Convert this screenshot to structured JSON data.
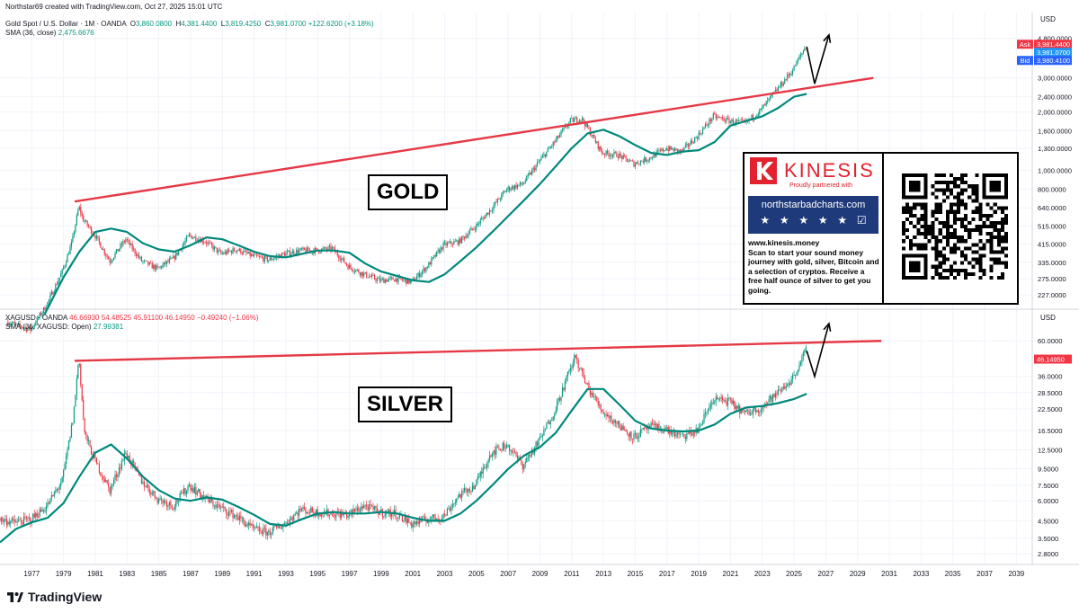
{
  "header": {
    "attribution": "Northstar69 created with TradingView.com, Oct 27, 2025 15:01 UTC",
    "gold_symbol": "Gold Spot / U.S. Dollar · 1M · OANDA",
    "gold_ohlc": {
      "o": "3,860.0800",
      "h": "4,381.4400",
      "l": "3,819.4250",
      "c": "3,981.0700",
      "chg": "+122.6200 (+3.18%)"
    },
    "gold_sma_label": "SMA (36, close)",
    "gold_sma_value": "2,475.6676",
    "silver_symbol": "XAGUSD · OANDA",
    "silver_ohlc": {
      "o": "46.66930",
      "h": "54.48525",
      "l": "45.91100",
      "c": "46.14950",
      "chg": "−0.49240 (−1.06%)"
    },
    "silver_sma_label": "SMA (36, XAGUSD: Open)",
    "silver_sma_value": "27.99381"
  },
  "labels": {
    "gold": "GOLD",
    "silver": "SILVER"
  },
  "price_tags": {
    "ask_label": "Ask",
    "ask": "3,981.4400",
    "last": "3,981.0700",
    "bid_label": "Bid",
    "bid": "3,980.4100",
    "silver_last": "46.14950"
  },
  "ad": {
    "brand": "KINESIS",
    "partner": "Proudly partnered with",
    "site": "northstarbadcharts.com",
    "text_lines": [
      "www.kinesis.money",
      "Scan to start your sound money",
      "journey with gold, silver, Bitcoin and",
      "a selection of cryptos. Receive a",
      "free half ounce of silver to get you",
      "going."
    ]
  },
  "footer": {
    "brand": "TradingView"
  },
  "colors": {
    "up": "#089981",
    "down": "#f23645",
    "sma": "#00897b",
    "trend": "#e53945",
    "ask": "#f23645",
    "last": "#2196f3",
    "bid": "#2962ff"
  },
  "chart_data": [
    {
      "type": "candlestick",
      "title": "Gold Spot / U.S. Dollar · 1M · OANDA",
      "axis_unit": "USD",
      "y_scale": "log",
      "y_ticks": [
        "4,800.0000",
        "3,000.0000",
        "2,400.0000",
        "2,000.0000",
        "1,600.0000",
        "1,300.0000",
        "1,000.0000",
        "800.0000",
        "640.0000",
        "515.0000",
        "415.0000",
        "335.0000",
        "275.0000",
        "227.0000"
      ],
      "y_tick_values": [
        4800,
        3000,
        2400,
        2000,
        1600,
        1300,
        1000,
        800,
        640,
        515,
        415,
        335,
        275,
        227
      ],
      "x_ticks": [
        "1977",
        "1979",
        "1981",
        "1983",
        "1985",
        "1987",
        "1989",
        "1991",
        "1993",
        "1995",
        "1997",
        "1999",
        "2001",
        "2003",
        "2005",
        "2007",
        "2009",
        "2011",
        "2013",
        "2015",
        "2017",
        "2019",
        "2021",
        "2023",
        "2025",
        "2027",
        "2029",
        "2031",
        "2033",
        "2035",
        "2037",
        "2039"
      ],
      "price_path": [
        [
          1975.5,
          165
        ],
        [
          1977,
          150
        ],
        [
          1978,
          200
        ],
        [
          1979,
          300
        ],
        [
          1979.6,
          420
        ],
        [
          1980.05,
          650
        ],
        [
          1980.3,
          560
        ],
        [
          1981,
          470
        ],
        [
          1982,
          340
        ],
        [
          1983,
          440
        ],
        [
          1984,
          340
        ],
        [
          1985,
          310
        ],
        [
          1986,
          350
        ],
        [
          1987,
          460
        ],
        [
          1988,
          430
        ],
        [
          1989,
          370
        ],
        [
          1990,
          390
        ],
        [
          1991,
          360
        ],
        [
          1992,
          345
        ],
        [
          1993,
          370
        ],
        [
          1994,
          385
        ],
        [
          1995,
          385
        ],
        [
          1996,
          395
        ],
        [
          1997,
          320
        ],
        [
          1998,
          290
        ],
        [
          1999,
          270
        ],
        [
          2000,
          275
        ],
        [
          2001,
          265
        ],
        [
          2002,
          320
        ],
        [
          2003,
          410
        ],
        [
          2004,
          430
        ],
        [
          2005,
          510
        ],
        [
          2006,
          630
        ],
        [
          2007,
          800
        ],
        [
          2008,
          850
        ],
        [
          2009,
          1100
        ],
        [
          2010,
          1400
        ],
        [
          2011,
          1800
        ],
        [
          2011.7,
          1850
        ],
        [
          2012,
          1700
        ],
        [
          2013,
          1230
        ],
        [
          2014,
          1200
        ],
        [
          2015,
          1080
        ],
        [
          2016,
          1160
        ],
        [
          2017,
          1300
        ],
        [
          2018,
          1250
        ],
        [
          2019,
          1500
        ],
        [
          2020,
          1900
        ],
        [
          2021,
          1800
        ],
        [
          2022,
          1750
        ],
        [
          2023,
          2050
        ],
        [
          2024,
          2600
        ],
        [
          2025,
          3300
        ],
        [
          2025.8,
          4350
        ]
      ],
      "sma_path": [
        [
          1977.8,
          180
        ],
        [
          1979,
          280
        ],
        [
          1980,
          380
        ],
        [
          1981,
          480
        ],
        [
          1982,
          500
        ],
        [
          1983,
          480
        ],
        [
          1984,
          420
        ],
        [
          1985,
          390
        ],
        [
          1986,
          380
        ],
        [
          1987,
          410
        ],
        [
          1988,
          450
        ],
        [
          1989,
          440
        ],
        [
          1990,
          410
        ],
        [
          1991,
          380
        ],
        [
          1992,
          360
        ],
        [
          1993,
          355
        ],
        [
          1994,
          370
        ],
        [
          1995,
          385
        ],
        [
          1996,
          385
        ],
        [
          1997,
          375
        ],
        [
          1998,
          330
        ],
        [
          1999,
          300
        ],
        [
          2000,
          285
        ],
        [
          2001,
          270
        ],
        [
          2002,
          265
        ],
        [
          2003,
          290
        ],
        [
          2004,
          340
        ],
        [
          2005,
          400
        ],
        [
          2006,
          480
        ],
        [
          2007,
          580
        ],
        [
          2008,
          700
        ],
        [
          2009,
          850
        ],
        [
          2010,
          1050
        ],
        [
          2011,
          1300
        ],
        [
          2012,
          1550
        ],
        [
          2013,
          1620
        ],
        [
          2014,
          1500
        ],
        [
          2015,
          1350
        ],
        [
          2016,
          1230
        ],
        [
          2017,
          1200
        ],
        [
          2018,
          1250
        ],
        [
          2019,
          1270
        ],
        [
          2020,
          1400
        ],
        [
          2021,
          1700
        ],
        [
          2022,
          1800
        ],
        [
          2023,
          1900
        ],
        [
          2024,
          2100
        ],
        [
          2025,
          2400
        ],
        [
          2025.8,
          2480
        ]
      ],
      "trendline": [
        [
          1979.7,
          690
        ],
        [
          2030,
          3000
        ]
      ],
      "projection": [
        [
          2025.8,
          4350
        ],
        [
          2026.3,
          2800
        ],
        [
          2027.2,
          5000
        ]
      ],
      "last": {
        "ask": 3981.44,
        "close": 3981.07,
        "bid": 3980.41
      }
    },
    {
      "type": "candlestick",
      "title": "XAGUSD · OANDA",
      "axis_unit": "USD",
      "y_scale": "log",
      "y_ticks": [
        "60.0000",
        "36.0000",
        "28.5000",
        "22.5000",
        "16.5000",
        "12.5000",
        "9.5000",
        "7.5000",
        "6.0000",
        "4.5000",
        "3.5000",
        "2.8000"
      ],
      "y_tick_values": [
        60,
        36,
        28.5,
        22.5,
        16.5,
        12.5,
        9.5,
        7.5,
        6,
        4.5,
        3.5,
        2.8
      ],
      "price_path": [
        [
          1975,
          4.6
        ],
        [
          1976,
          4.4
        ],
        [
          1977,
          4.6
        ],
        [
          1978,
          5.5
        ],
        [
          1979,
          8
        ],
        [
          1979.7,
          20
        ],
        [
          1980.05,
          48
        ],
        [
          1980.4,
          16
        ],
        [
          1981,
          11
        ],
        [
          1982,
          7
        ],
        [
          1983,
          12
        ],
        [
          1984,
          8
        ],
        [
          1985,
          6.2
        ],
        [
          1986,
          5.6
        ],
        [
          1987,
          7.5
        ],
        [
          1988,
          6.2
        ],
        [
          1989,
          5.4
        ],
        [
          1990,
          4.8
        ],
        [
          1991,
          4
        ],
        [
          1992,
          3.8
        ],
        [
          1993,
          4.3
        ],
        [
          1994,
          5.3
        ],
        [
          1995,
          5.1
        ],
        [
          1996,
          5
        ],
        [
          1997,
          4.9
        ],
        [
          1998,
          5.6
        ],
        [
          1999,
          5.1
        ],
        [
          2000,
          5
        ],
        [
          2001,
          4.3
        ],
        [
          2002,
          4.6
        ],
        [
          2003,
          4.8
        ],
        [
          2004,
          6.5
        ],
        [
          2005,
          7.5
        ],
        [
          2006,
          12
        ],
        [
          2007,
          13.5
        ],
        [
          2008,
          10
        ],
        [
          2009,
          14
        ],
        [
          2010,
          22
        ],
        [
          2011.3,
          48
        ],
        [
          2012,
          32
        ],
        [
          2013,
          22
        ],
        [
          2014,
          18
        ],
        [
          2015,
          15
        ],
        [
          2016,
          17.5
        ],
        [
          2017,
          16.8
        ],
        [
          2018,
          15
        ],
        [
          2019,
          16.5
        ],
        [
          2020,
          26
        ],
        [
          2021,
          25
        ],
        [
          2022,
          21
        ],
        [
          2023,
          23
        ],
        [
          2024,
          28
        ],
        [
          2025,
          35
        ],
        [
          2025.8,
          52
        ]
      ],
      "sma_path": [
        [
          1975,
          3.3
        ],
        [
          1976,
          4
        ],
        [
          1977,
          4.4
        ],
        [
          1978,
          4.7
        ],
        [
          1979,
          5.8
        ],
        [
          1980,
          8.5
        ],
        [
          1981,
          12
        ],
        [
          1982,
          13.5
        ],
        [
          1983,
          11
        ],
        [
          1984,
          8.5
        ],
        [
          1985,
          7
        ],
        [
          1986,
          6.2
        ],
        [
          1987,
          6
        ],
        [
          1988,
          6.3
        ],
        [
          1989,
          6.1
        ],
        [
          1990,
          5.5
        ],
        [
          1991,
          4.9
        ],
        [
          1992,
          4.3
        ],
        [
          1993,
          4.2
        ],
        [
          1994,
          4.6
        ],
        [
          1995,
          5
        ],
        [
          1996,
          5.1
        ],
        [
          1997,
          5
        ],
        [
          1998,
          5
        ],
        [
          1999,
          5.1
        ],
        [
          2000,
          5
        ],
        [
          2001,
          4.7
        ],
        [
          2002,
          4.5
        ],
        [
          2003,
          4.5
        ],
        [
          2004,
          5
        ],
        [
          2005,
          6
        ],
        [
          2006,
          7.5
        ],
        [
          2007,
          9.5
        ],
        [
          2008,
          11.5
        ],
        [
          2009,
          13
        ],
        [
          2010,
          16
        ],
        [
          2011,
          22
        ],
        [
          2012,
          30
        ],
        [
          2013,
          30
        ],
        [
          2014,
          24
        ],
        [
          2015,
          19
        ],
        [
          2016,
          17
        ],
        [
          2017,
          16.5
        ],
        [
          2018,
          16.3
        ],
        [
          2019,
          16.5
        ],
        [
          2020,
          18
        ],
        [
          2021,
          21
        ],
        [
          2022,
          23
        ],
        [
          2023,
          23.5
        ],
        [
          2024,
          24.5
        ],
        [
          2025,
          26
        ],
        [
          2025.8,
          28
        ]
      ],
      "trendline": [
        [
          1979.7,
          45
        ],
        [
          2030.5,
          60
        ]
      ],
      "projection": [
        [
          2025.8,
          52
        ],
        [
          2026.3,
          36
        ],
        [
          2027.2,
          77
        ]
      ],
      "last": {
        "close": 46.1495
      }
    }
  ]
}
